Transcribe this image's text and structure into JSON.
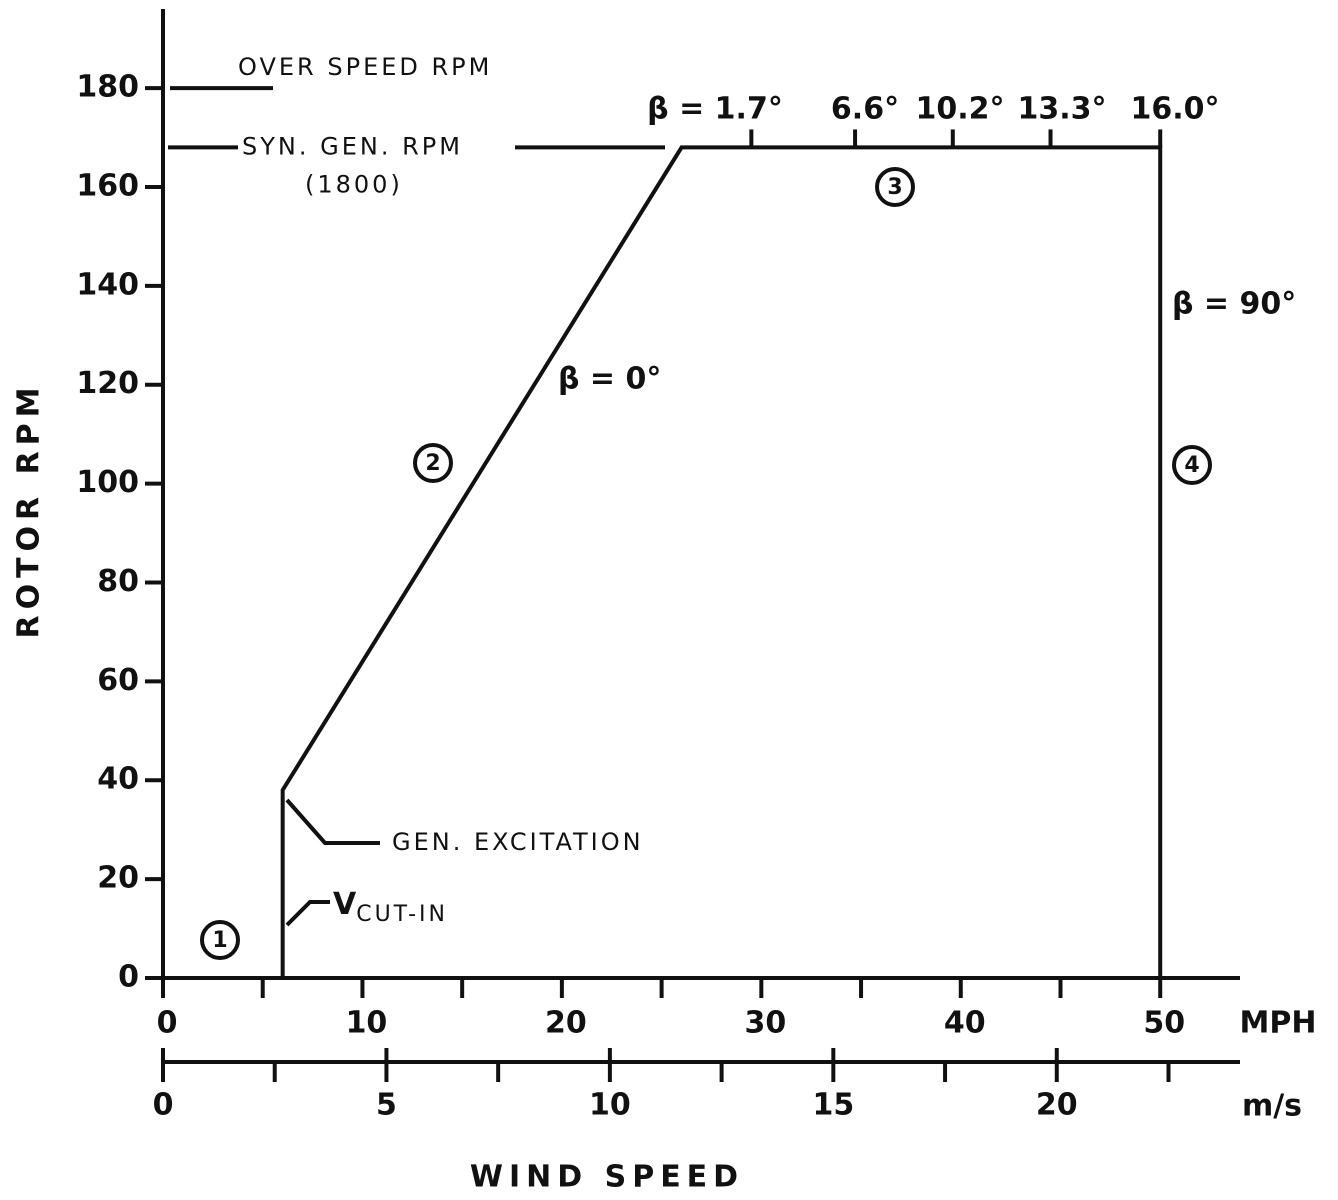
{
  "chart_data": {
    "type": "line",
    "ylabel": "ROTOR RPM",
    "xlabel": "WIND SPEED",
    "x_unit": "MPH",
    "x2_unit": "m/s",
    "x": [
      6,
      6,
      26,
      50,
      50
    ],
    "values": [
      0,
      38,
      168,
      168,
      0
    ],
    "color": "#000000",
    "xlim": [
      0,
      54
    ],
    "ylim": [
      0,
      196
    ],
    "x2lim": [
      0,
      24.1
    ],
    "xticks": [
      0,
      10,
      20,
      30,
      40,
      50
    ],
    "xminor_ticks": [
      5,
      15,
      25,
      35,
      45
    ],
    "x2ticks": [
      0,
      5,
      10,
      15,
      20
    ],
    "x2minor_ticks": [
      2.5,
      7.5,
      12.5,
      17.5,
      22.5
    ],
    "yticks": [
      0,
      20,
      40,
      60,
      80,
      100,
      120,
      140,
      160,
      180
    ],
    "reference_lines": [
      {
        "label": "OVER SPEED RPM",
        "y": 180
      },
      {
        "label": "SYN. GEN. RPM",
        "y": 168,
        "note": "(1800)"
      }
    ],
    "pitch_angles": {
      "ticks": [
        29.5,
        34.7,
        39.6,
        44.5,
        50
      ],
      "labels": [
        "β = 1.7°",
        "6.6°",
        "10.2°",
        "13.3°",
        "16.0°"
      ]
    },
    "annotations": [
      "β = 0°",
      "β = 90°",
      "GEN. EXCITATION"
    ],
    "cut_in": {
      "main": "V",
      "sub": "CUT-IN"
    },
    "regions": [
      "1",
      "2",
      "3",
      "4"
    ]
  }
}
